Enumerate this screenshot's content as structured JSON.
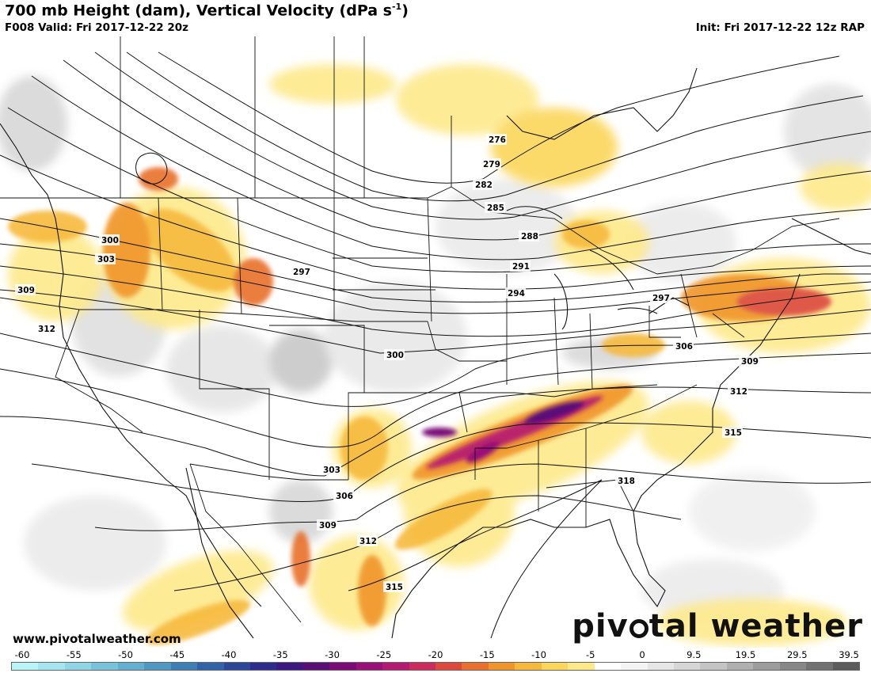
{
  "header": {
    "title_main": "700 mb Height (dam), Vertical Velocity (dPa s",
    "title_sup": "-1",
    "title_end": ")",
    "valid": "F008 Valid: Fri 2017-12-22 20z",
    "init": "Init: Fri 2017-12-22 12z RAP"
  },
  "footer": {
    "site": "www.pivotalweather.com",
    "brand_left": "piv",
    "brand_right": "tal weather"
  },
  "contour_labels": [
    "276",
    "279",
    "282",
    "285",
    "288",
    "291",
    "294",
    "297",
    "297",
    "300",
    "300",
    "303",
    "303",
    "306",
    "306",
    "309",
    "309",
    "309",
    "312",
    "312",
    "312",
    "315",
    "315",
    "318"
  ],
  "colorbar": {
    "ticks": [
      "-60",
      "-55",
      "-50",
      "-45",
      "-40",
      "-35",
      "-30",
      "-25",
      "-20",
      "-15",
      "-10",
      "-5",
      "0",
      "9.5",
      "19.5",
      "29.5",
      "39.5"
    ],
    "colors": [
      "#b9f4f8",
      "#a3e6f0",
      "#8ed6e6",
      "#78c3db",
      "#64aecf",
      "#4f98c2",
      "#3e7fb6",
      "#3262a8",
      "#2c4798",
      "#2b2c8b",
      "#3d1880",
      "#5a0f78",
      "#7a0b78",
      "#981078",
      "#b41a72",
      "#cc2b5d",
      "#dc4a3f",
      "#e8702c",
      "#f0952c",
      "#f6b93e",
      "#fbd65a",
      "#fde98a",
      "#ffffff",
      "#f4f4f4",
      "#e6e6e6",
      "#d6d6d6",
      "#c4c4c4",
      "#b0b0b0",
      "#9c9c9c",
      "#878787",
      "#727272",
      "#5c5c5c"
    ]
  }
}
